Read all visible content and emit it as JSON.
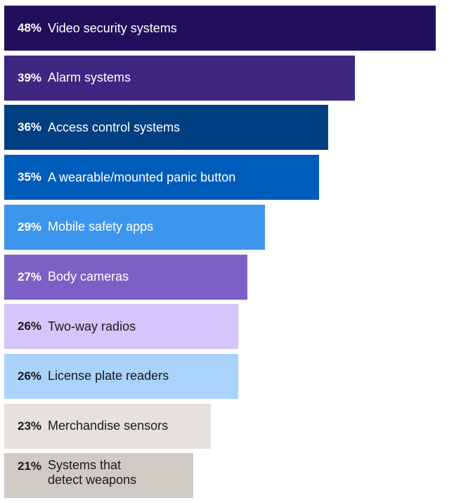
{
  "chart_data": {
    "type": "bar",
    "orientation": "horizontal",
    "title": "",
    "xlabel": "",
    "ylabel": "",
    "xlim": [
      0,
      50
    ],
    "grid": false,
    "value_suffix": "%",
    "bars": [
      {
        "value": 48,
        "label": "Video security systems",
        "color": "#220f5c",
        "text_color": "#ffffff"
      },
      {
        "value": 39,
        "label": "Alarm systems",
        "color": "#3d2680",
        "text_color": "#ffffff"
      },
      {
        "value": 36,
        "label": "Access control systems",
        "color": "#003f82",
        "text_color": "#ffffff"
      },
      {
        "value": 35,
        "label": "A wearable/mounted panic button",
        "color": "#005cba",
        "text_color": "#ffffff"
      },
      {
        "value": 29,
        "label": "Mobile safety apps",
        "color": "#3d96ee",
        "text_color": "#ffffff"
      },
      {
        "value": 27,
        "label": "Body cameras",
        "color": "#7b61c6",
        "text_color": "#ffffff"
      },
      {
        "value": 26,
        "label": "Two-way radios",
        "color": "#d2c6fb",
        "text_color": "#1a1a1a"
      },
      {
        "value": 26,
        "label": "License plate readers",
        "color": "#a9d3fb",
        "text_color": "#1a1a1a"
      },
      {
        "value": 23,
        "label": "Merchandise sensors",
        "color": "#e6e1dc",
        "text_color": "#1a1a1a"
      },
      {
        "value": 21,
        "label": "Systems that\ndetect weapons",
        "color": "#cfcac4",
        "text_color": "#1a1a1a"
      }
    ]
  }
}
